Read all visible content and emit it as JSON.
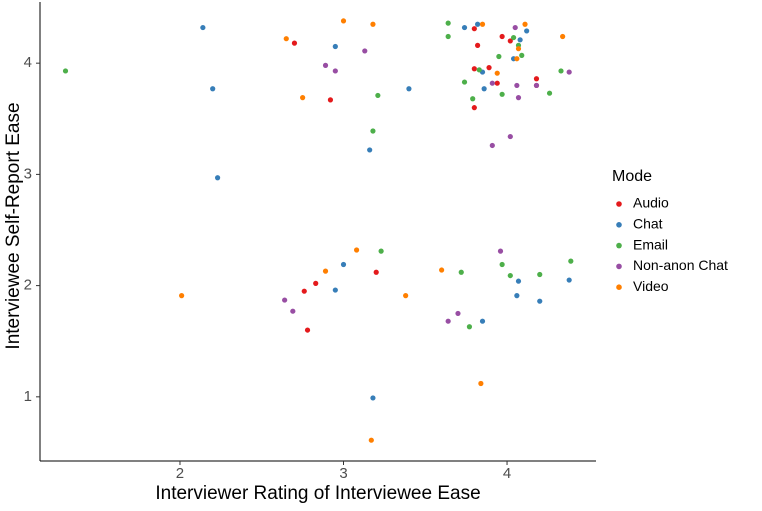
{
  "chart_data": {
    "type": "scatter",
    "x_label": "Interviewer Rating of Interviewee Ease",
    "y_label": "Interviewee Self-Report Ease",
    "legend_title": "Mode",
    "legend": "right",
    "grid": false,
    "xlim": [
      1.144,
      4.544
    ],
    "xticks": [
      2,
      3,
      4
    ],
    "ylim": [
      0.423,
      4.55
    ],
    "yticks": [
      1,
      2,
      3,
      4
    ],
    "series": [
      {
        "name": "Audio",
        "color": "#e41a1c",
        "x": [
          2.7,
          2.92,
          2.76,
          2.83,
          2.78,
          3.2,
          3.8,
          3.82,
          3.97,
          3.89,
          3.8,
          3.94,
          3.8,
          4.18,
          4.18,
          4.02
        ],
        "y": [
          4.18,
          3.67,
          1.95,
          2.02,
          1.6,
          2.12,
          4.31,
          4.16,
          4.24,
          3.96,
          3.95,
          3.82,
          3.6,
          3.86,
          3.8,
          4.2
        ]
      },
      {
        "name": "Chat",
        "color": "#377eb8",
        "x": [
          2.14,
          2.2,
          2.23,
          2.95,
          3.4,
          3.16,
          3.0,
          2.95,
          3.18,
          3.74,
          3.82,
          3.85,
          3.86,
          4.08,
          4.12,
          4.04,
          3.85,
          4.06,
          4.07,
          4.2,
          4.38
        ],
        "y": [
          4.32,
          3.77,
          2.97,
          4.15,
          3.77,
          3.22,
          2.19,
          1.96,
          0.99,
          4.32,
          4.35,
          3.92,
          3.77,
          4.21,
          4.29,
          4.04,
          1.68,
          1.91,
          2.04,
          1.86,
          2.05
        ]
      },
      {
        "name": "Email",
        "color": "#4daf4a",
        "x": [
          1.3,
          3.18,
          3.21,
          3.23,
          3.64,
          3.64,
          3.74,
          3.79,
          3.83,
          3.95,
          3.97,
          4.04,
          4.07,
          4.09,
          4.26,
          4.33,
          3.72,
          3.77,
          3.97,
          4.02,
          4.2,
          4.39
        ],
        "y": [
          3.93,
          3.39,
          3.71,
          2.31,
          4.36,
          4.24,
          3.83,
          3.68,
          3.94,
          4.06,
          3.72,
          4.23,
          4.16,
          4.07,
          3.73,
          3.93,
          2.12,
          1.63,
          2.19,
          2.09,
          2.1,
          2.22
        ]
      },
      {
        "name": "Non-anon Chat",
        "color": "#984ea3",
        "x": [
          2.89,
          2.95,
          3.13,
          3.91,
          4.05,
          4.06,
          4.07,
          4.02,
          3.91,
          4.18,
          4.38,
          2.64,
          2.69,
          3.64,
          3.7,
          3.96
        ],
        "y": [
          3.98,
          3.93,
          4.11,
          3.82,
          4.32,
          3.8,
          3.69,
          3.34,
          3.26,
          3.8,
          3.92,
          1.87,
          1.77,
          1.68,
          1.75,
          2.31
        ]
      },
      {
        "name": "Video",
        "color": "#ff7f00",
        "x": [
          2.65,
          3.0,
          3.18,
          2.75,
          2.01,
          2.89,
          3.08,
          3.38,
          3.6,
          3.85,
          3.94,
          4.11,
          4.07,
          4.06,
          4.34,
          3.84,
          3.17
        ],
        "y": [
          4.22,
          4.38,
          4.35,
          3.69,
          1.91,
          2.13,
          2.32,
          1.91,
          2.14,
          4.35,
          3.91,
          4.35,
          4.13,
          4.04,
          4.24,
          1.12,
          0.61
        ]
      }
    ]
  }
}
